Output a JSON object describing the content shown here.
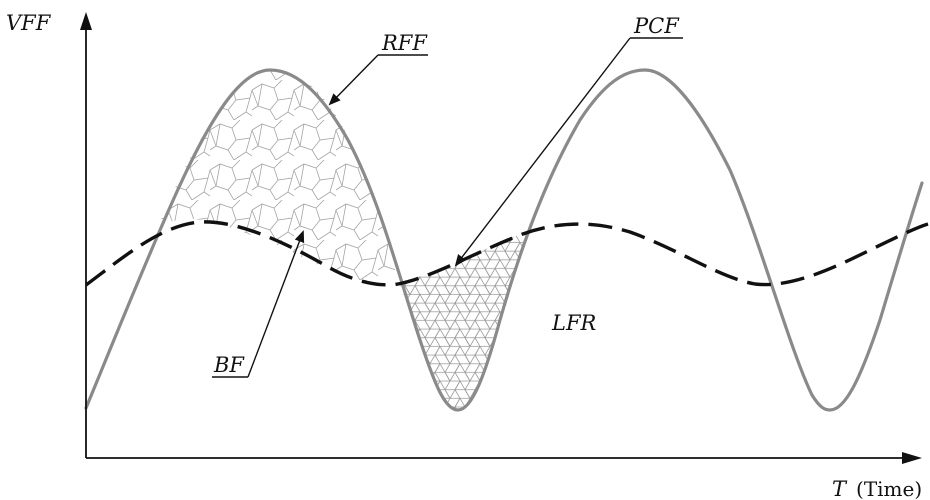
{
  "diagram": {
    "y_axis_label": "VFF",
    "x_axis_label_var": "T",
    "x_axis_label_unit": "(Time)",
    "labels": {
      "rff": "RFF",
      "pcf": "PCF",
      "bf": "BF",
      "lfr": "LFR"
    },
    "colors": {
      "solid_curve": "#8a8a8a",
      "dashed_curve": "#111111",
      "hatch": "#9a9a9a",
      "axis": "#111111"
    }
  }
}
